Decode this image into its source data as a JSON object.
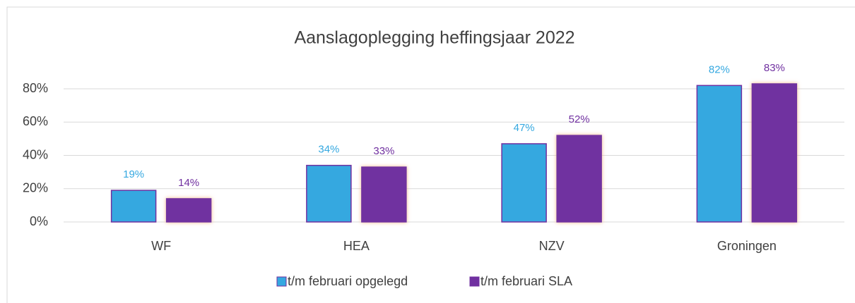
{
  "chart_data": {
    "type": "bar",
    "title": "Aanslagoplegging heffingsjaar 2022",
    "categories": [
      "WF",
      "HEA",
      "NZV",
      "Groningen"
    ],
    "series": [
      {
        "name": "t/m februari opgelegd",
        "color": "#35a8e0",
        "values": [
          19,
          34,
          47,
          82
        ],
        "value_labels": [
          "19%",
          "34%",
          "47%",
          "82%"
        ]
      },
      {
        "name": "t/m februari SLA",
        "color": "#7030a0",
        "values": [
          14,
          33,
          52,
          83
        ],
        "value_labels": [
          "14%",
          "33%",
          "52%",
          "83%"
        ]
      }
    ],
    "ylim": [
      0,
      90
    ],
    "yticks": [
      {
        "value": 0,
        "label": "0%"
      },
      {
        "value": 20,
        "label": "20%"
      },
      {
        "value": 40,
        "label": "40%"
      },
      {
        "value": 60,
        "label": "60%"
      },
      {
        "value": 80,
        "label": "80%"
      }
    ],
    "grid": true,
    "legend": "bottom"
  }
}
